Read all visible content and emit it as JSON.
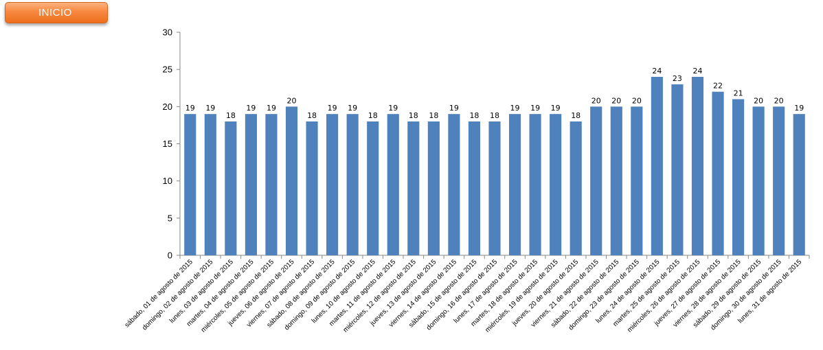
{
  "button": {
    "label": "INICIO"
  },
  "chart_data": {
    "type": "bar",
    "title": "",
    "xlabel": "",
    "ylabel": "",
    "ylim": [
      0,
      30
    ],
    "yticks": [
      0,
      5,
      10,
      15,
      20,
      25,
      30
    ],
    "grid": false,
    "legend": "none",
    "bar_color": "#4f81bd",
    "categories": [
      "sábado, 01 de agosto de 2015",
      "domingo, 02 de agosto de 2015",
      "lunes, 03 de agosto de 2015",
      "martes, 04 de agosto de 2015",
      "miércoles, 05 de agosto de 2015",
      "jueves, 06 de agosto de 2015",
      "viernes, 07 de agosto de 2015",
      "sábado, 08 de agosto de 2015",
      "domingo, 09 de agosto de 2015",
      "lunes, 10 de agosto de 2015",
      "martes, 11 de agosto de 2015",
      "miércoles, 12 de agosto de 2015",
      "jueves, 13 de agosto de 2015",
      "viernes, 14 de agosto de 2015",
      "sábado, 15 de agosto de 2015",
      "domingo, 16 de agosto de 2015",
      "lunes, 17 de agosto de 2015",
      "martes, 18 de agosto de 2015",
      "miércoles, 19 de agosto de 2015",
      "jueves, 20 de agosto de 2015",
      "viernes, 21 de agosto de 2015",
      "sábado, 22 de agosto de 2015",
      "domingo, 23 de agosto de 2015",
      "lunes, 24 de agosto de 2015",
      "martes, 25 de agosto de 2015",
      "miércoles, 26 de agosto de 2015",
      "jueves, 27 de agosto de 2015",
      "viernes, 28 de agosto de 2015",
      "sábado, 29 de agosto de 2015",
      "domingo, 30 de agosto de 2015",
      "lunes, 31 de agosto de 2015"
    ],
    "values": [
      19,
      19,
      18,
      19,
      19,
      20,
      18,
      19,
      19,
      18,
      19,
      18,
      18,
      19,
      18,
      18,
      19,
      19,
      19,
      18,
      20,
      20,
      20,
      24,
      23,
      24,
      22,
      21,
      20,
      20,
      19
    ]
  }
}
